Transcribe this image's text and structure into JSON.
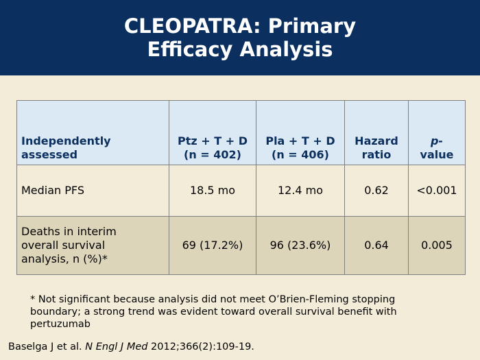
{
  "slide": {
    "title_line1": "CLEOPATRA: Primary",
    "title_line2": "Efficacy Analysis"
  },
  "colors": {
    "header_bg": "#0b2f5e",
    "table_header_bg": "#dbe9f4",
    "row1_bg": "#f3ecd9",
    "row2_bg": "#ddd5ba",
    "page_bg": "#f3ecd9"
  },
  "table": {
    "headers": [
      {
        "line1": "Independently",
        "line2": "assessed"
      },
      {
        "line1": "Ptz + T + D",
        "line2": "(n = 402)"
      },
      {
        "line1": "Pla + T + D",
        "line2": "(n = 406)"
      },
      {
        "line1": "Hazard",
        "line2": "ratio"
      },
      {
        "line1": "p-",
        "line2": "value"
      }
    ],
    "rows": [
      {
        "label_lines": [
          "Median PFS"
        ],
        "cells": [
          "18.5 mo",
          "12.4 mo",
          "0.62",
          "<0.001"
        ]
      },
      {
        "label_lines": [
          "Deaths in interim",
          "overall survival",
          "analysis, n (%)*"
        ],
        "cells": [
          "69 (17.2%)",
          "96 (23.6%)",
          "0.64",
          "0.005"
        ]
      }
    ]
  },
  "footnote": "* Not significant because analysis did not meet O’Brien-Fleming stopping boundary; a strong trend was evident toward overall survival benefit with pertuzumab",
  "citation": {
    "authors": "Baselga J et al. ",
    "journal": "N Engl J Med",
    "details": " 2012;366(2):109-19."
  }
}
